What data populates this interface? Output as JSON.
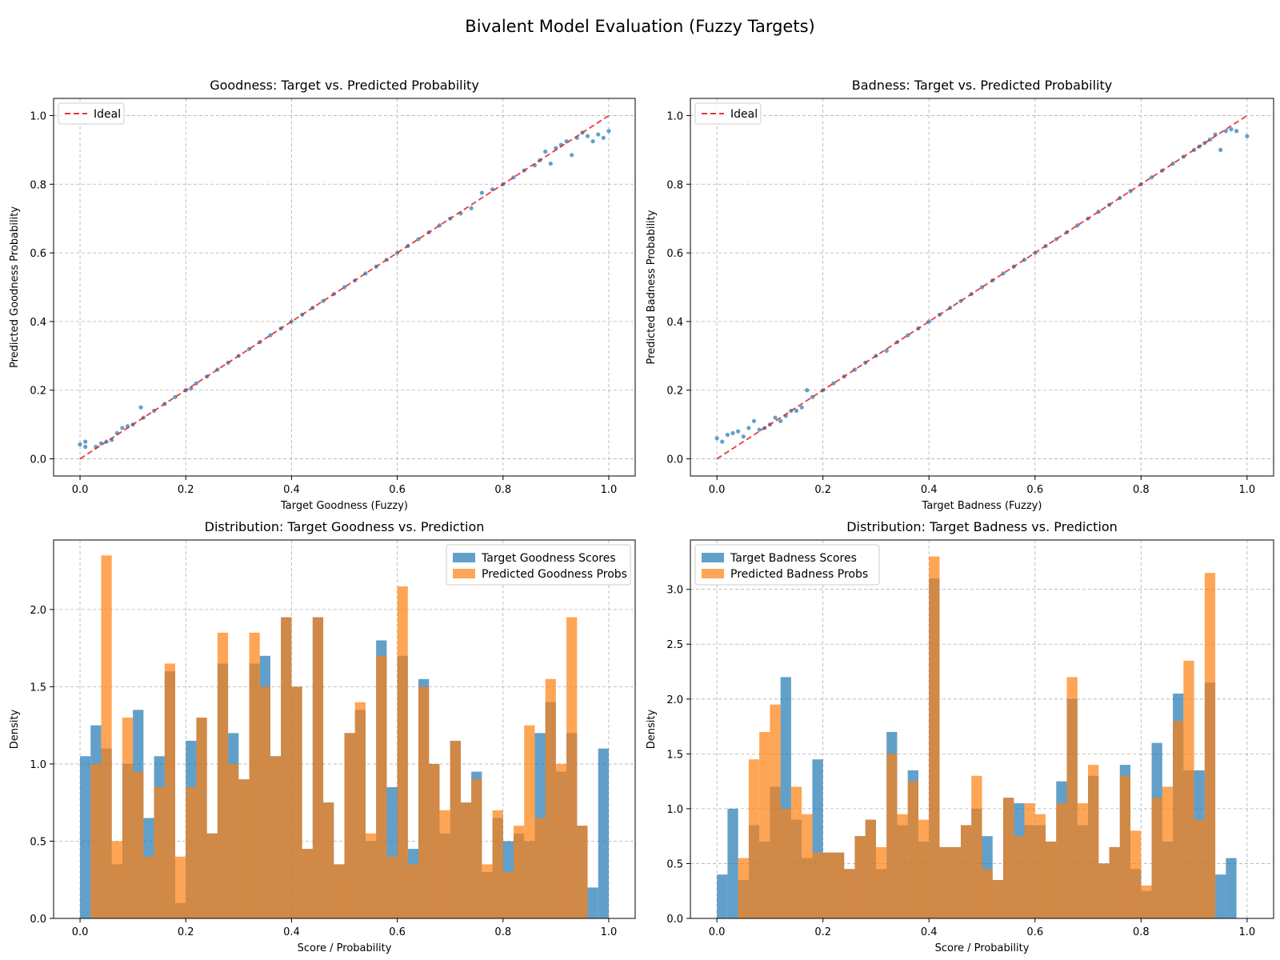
{
  "suptitle": "Bivalent Model Evaluation (Fuzzy Targets)",
  "colors": {
    "target": "#1f77b4",
    "predicted": "#ff7f0e",
    "ideal": "#e31a1c",
    "grid": "#b0b0b0"
  },
  "chart_data": [
    {
      "type": "scatter",
      "title": "Goodness: Target vs. Predicted Probability",
      "xlabel": "Target Goodness (Fuzzy)",
      "ylabel": "Predicted Goodness Probability",
      "xlim": [
        -0.05,
        1.05
      ],
      "ylim": [
        -0.05,
        1.05
      ],
      "xticks": [
        "0.0",
        "0.2",
        "0.4",
        "0.6",
        "0.8",
        "1.0"
      ],
      "yticks": [
        "0.0",
        "0.2",
        "0.4",
        "0.6",
        "0.8",
        "1.0"
      ],
      "grid": true,
      "legend_position": "top-left",
      "ideal_line": {
        "label": "Ideal",
        "x": [
          0,
          1
        ],
        "y": [
          0,
          1
        ]
      },
      "points": [
        [
          0.0,
          0.042
        ],
        [
          0.01,
          0.05
        ],
        [
          0.01,
          0.035
        ],
        [
          0.03,
          0.035
        ],
        [
          0.04,
          0.045
        ],
        [
          0.05,
          0.05
        ],
        [
          0.06,
          0.055
        ],
        [
          0.07,
          0.075
        ],
        [
          0.08,
          0.09
        ],
        [
          0.09,
          0.095
        ],
        [
          0.1,
          0.1
        ],
        [
          0.115,
          0.15
        ],
        [
          0.12,
          0.12
        ],
        [
          0.14,
          0.14
        ],
        [
          0.16,
          0.16
        ],
        [
          0.18,
          0.18
        ],
        [
          0.2,
          0.2
        ],
        [
          0.21,
          0.205
        ],
        [
          0.22,
          0.22
        ],
        [
          0.24,
          0.24
        ],
        [
          0.26,
          0.26
        ],
        [
          0.28,
          0.28
        ],
        [
          0.3,
          0.3
        ],
        [
          0.32,
          0.32
        ],
        [
          0.34,
          0.34
        ],
        [
          0.36,
          0.36
        ],
        [
          0.38,
          0.38
        ],
        [
          0.4,
          0.4
        ],
        [
          0.42,
          0.42
        ],
        [
          0.44,
          0.44
        ],
        [
          0.46,
          0.46
        ],
        [
          0.48,
          0.48
        ],
        [
          0.5,
          0.5
        ],
        [
          0.52,
          0.52
        ],
        [
          0.54,
          0.54
        ],
        [
          0.56,
          0.56
        ],
        [
          0.58,
          0.58
        ],
        [
          0.6,
          0.6
        ],
        [
          0.62,
          0.62
        ],
        [
          0.64,
          0.64
        ],
        [
          0.66,
          0.66
        ],
        [
          0.68,
          0.68
        ],
        [
          0.7,
          0.7
        ],
        [
          0.72,
          0.715
        ],
        [
          0.74,
          0.73
        ],
        [
          0.76,
          0.775
        ],
        [
          0.78,
          0.785
        ],
        [
          0.8,
          0.8
        ],
        [
          0.82,
          0.82
        ],
        [
          0.84,
          0.84
        ],
        [
          0.86,
          0.855
        ],
        [
          0.87,
          0.87
        ],
        [
          0.88,
          0.895
        ],
        [
          0.89,
          0.86
        ],
        [
          0.9,
          0.905
        ],
        [
          0.91,
          0.915
        ],
        [
          0.92,
          0.925
        ],
        [
          0.93,
          0.885
        ],
        [
          0.94,
          0.935
        ],
        [
          0.95,
          0.95
        ],
        [
          0.96,
          0.94
        ],
        [
          0.97,
          0.925
        ],
        [
          0.98,
          0.945
        ],
        [
          0.99,
          0.935
        ],
        [
          1.0,
          0.955
        ]
      ]
    },
    {
      "type": "scatter",
      "title": "Badness: Target vs. Predicted Probability",
      "xlabel": "Target Badness (Fuzzy)",
      "ylabel": "Predicted Badness Probability",
      "xlim": [
        -0.05,
        1.05
      ],
      "ylim": [
        -0.05,
        1.05
      ],
      "xticks": [
        "0.0",
        "0.2",
        "0.4",
        "0.6",
        "0.8",
        "1.0"
      ],
      "yticks": [
        "0.0",
        "0.2",
        "0.4",
        "0.6",
        "0.8",
        "1.0"
      ],
      "grid": true,
      "legend_position": "top-left",
      "ideal_line": {
        "label": "Ideal",
        "x": [
          0,
          1
        ],
        "y": [
          0,
          1
        ]
      },
      "points": [
        [
          0.0,
          0.06
        ],
        [
          0.01,
          0.05
        ],
        [
          0.02,
          0.07
        ],
        [
          0.03,
          0.075
        ],
        [
          0.04,
          0.08
        ],
        [
          0.05,
          0.065
        ],
        [
          0.06,
          0.09
        ],
        [
          0.07,
          0.11
        ],
        [
          0.08,
          0.085
        ],
        [
          0.09,
          0.09
        ],
        [
          0.1,
          0.1
        ],
        [
          0.11,
          0.12
        ],
        [
          0.12,
          0.11
        ],
        [
          0.13,
          0.125
        ],
        [
          0.14,
          0.14
        ],
        [
          0.15,
          0.14
        ],
        [
          0.16,
          0.15
        ],
        [
          0.17,
          0.2
        ],
        [
          0.18,
          0.18
        ],
        [
          0.2,
          0.2
        ],
        [
          0.22,
          0.22
        ],
        [
          0.24,
          0.24
        ],
        [
          0.26,
          0.26
        ],
        [
          0.28,
          0.28
        ],
        [
          0.3,
          0.3
        ],
        [
          0.32,
          0.315
        ],
        [
          0.34,
          0.34
        ],
        [
          0.36,
          0.36
        ],
        [
          0.38,
          0.38
        ],
        [
          0.4,
          0.4
        ],
        [
          0.42,
          0.42
        ],
        [
          0.44,
          0.44
        ],
        [
          0.46,
          0.46
        ],
        [
          0.48,
          0.48
        ],
        [
          0.5,
          0.5
        ],
        [
          0.52,
          0.52
        ],
        [
          0.54,
          0.54
        ],
        [
          0.56,
          0.56
        ],
        [
          0.58,
          0.58
        ],
        [
          0.6,
          0.6
        ],
        [
          0.62,
          0.62
        ],
        [
          0.64,
          0.64
        ],
        [
          0.66,
          0.66
        ],
        [
          0.68,
          0.68
        ],
        [
          0.7,
          0.7
        ],
        [
          0.72,
          0.72
        ],
        [
          0.74,
          0.74
        ],
        [
          0.76,
          0.76
        ],
        [
          0.78,
          0.78
        ],
        [
          0.8,
          0.8
        ],
        [
          0.82,
          0.82
        ],
        [
          0.84,
          0.84
        ],
        [
          0.86,
          0.86
        ],
        [
          0.88,
          0.88
        ],
        [
          0.9,
          0.9
        ],
        [
          0.91,
          0.91
        ],
        [
          0.92,
          0.92
        ],
        [
          0.93,
          0.93
        ],
        [
          0.94,
          0.945
        ],
        [
          0.95,
          0.9
        ],
        [
          0.96,
          0.955
        ],
        [
          0.97,
          0.96
        ],
        [
          0.98,
          0.955
        ],
        [
          1.0,
          0.94
        ]
      ]
    },
    {
      "type": "bar",
      "title": "Distribution: Target Goodness vs. Prediction",
      "xlabel": "Score / Probability",
      "ylabel": "Density",
      "xlim": [
        -0.05,
        1.05
      ],
      "ylim": [
        0,
        2.45
      ],
      "xticks": [
        "0.0",
        "0.2",
        "0.4",
        "0.6",
        "0.8",
        "1.0"
      ],
      "yticks": [
        "0.0",
        "0.5",
        "1.0",
        "1.5",
        "2.0"
      ],
      "grid": true,
      "legend_position": "top-right",
      "bins": 50,
      "bin_range": [
        0,
        1
      ],
      "series": [
        {
          "name": "Target Goodness Scores",
          "values": [
            1.05,
            1.25,
            1.1,
            0.35,
            1.0,
            1.35,
            0.65,
            1.05,
            1.6,
            0.1,
            1.15,
            1.3,
            0.55,
            1.65,
            1.2,
            0.9,
            1.65,
            1.7,
            1.05,
            1.95,
            1.5,
            0.45,
            1.95,
            0.75,
            0.35,
            1.2,
            1.35,
            0.5,
            1.8,
            0.85,
            1.7,
            0.45,
            1.55,
            1.0,
            0.55,
            1.15,
            0.75,
            0.95,
            0.3,
            0.65,
            0.5,
            0.55,
            0.5,
            1.2,
            1.4,
            0.95,
            1.2,
            0.6,
            0.2,
            1.1
          ]
        },
        {
          "name": "Predicted Goodness Probs",
          "values": [
            0.0,
            1.0,
            2.35,
            0.5,
            1.3,
            0.95,
            0.4,
            0.85,
            1.65,
            0.4,
            0.85,
            1.3,
            0.55,
            1.85,
            1.0,
            0.9,
            1.85,
            1.5,
            1.05,
            1.95,
            1.5,
            0.45,
            1.95,
            0.75,
            0.35,
            1.2,
            1.4,
            0.55,
            1.7,
            0.4,
            2.15,
            0.35,
            1.5,
            1.0,
            0.7,
            1.15,
            0.75,
            0.9,
            0.35,
            0.7,
            0.3,
            0.6,
            1.25,
            0.65,
            1.55,
            1.0,
            1.95,
            0.6,
            0.0,
            0.0
          ]
        }
      ]
    },
    {
      "type": "bar",
      "title": "Distribution: Target Badness vs. Prediction",
      "xlabel": "Score / Probability",
      "ylabel": "Density",
      "xlim": [
        -0.05,
        1.05
      ],
      "ylim": [
        0,
        3.45
      ],
      "xticks": [
        "0.0",
        "0.2",
        "0.4",
        "0.6",
        "0.8",
        "1.0"
      ],
      "yticks": [
        "0.0",
        "0.5",
        "1.0",
        "1.5",
        "2.0",
        "2.5",
        "3.0"
      ],
      "grid": true,
      "legend_position": "top-left",
      "bins": 50,
      "bin_range": [
        0,
        1
      ],
      "series": [
        {
          "name": "Target Badness Scores",
          "values": [
            0.4,
            1.0,
            0.35,
            0.85,
            0.7,
            1.2,
            2.2,
            0.9,
            0.55,
            1.45,
            0.6,
            0.6,
            0.45,
            0.75,
            0.9,
            0.45,
            1.7,
            0.85,
            1.35,
            0.7,
            3.1,
            0.65,
            0.65,
            0.85,
            1.0,
            0.75,
            0.35,
            1.1,
            1.05,
            0.85,
            0.85,
            0.7,
            1.25,
            2.0,
            0.85,
            1.3,
            0.5,
            0.65,
            1.4,
            0.45,
            0.25,
            1.6,
            0.7,
            2.05,
            1.35,
            1.35,
            2.15,
            0.4,
            0.55,
            0.0
          ]
        },
        {
          "name": "Predicted Badness Probs",
          "values": [
            0.0,
            0.0,
            0.55,
            1.45,
            1.7,
            1.95,
            1.0,
            1.2,
            0.95,
            0.6,
            0.6,
            0.6,
            0.45,
            0.75,
            0.9,
            0.65,
            1.5,
            0.95,
            1.25,
            0.9,
            3.3,
            0.65,
            0.65,
            0.85,
            1.3,
            0.45,
            0.35,
            1.1,
            0.75,
            1.05,
            0.95,
            0.7,
            1.05,
            2.2,
            1.05,
            1.4,
            0.5,
            0.65,
            1.3,
            0.8,
            0.3,
            1.1,
            1.2,
            1.8,
            2.35,
            0.9,
            3.15,
            0.0,
            0.0,
            0.0
          ]
        }
      ]
    }
  ]
}
